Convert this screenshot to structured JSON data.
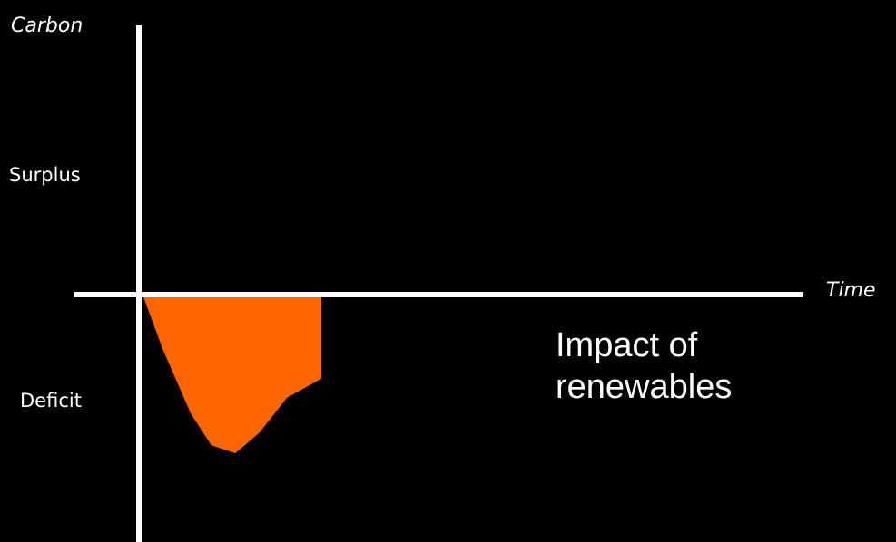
{
  "chart_data": {
    "type": "area",
    "title": "",
    "xlabel": "Time",
    "ylabel": "Carbon",
    "region_labels": {
      "positive": "Surplus",
      "negative": "Deficit"
    },
    "annotation": [
      "Impact of",
      "renewables"
    ],
    "xlim": [
      0,
      100
    ],
    "ylim": [
      -100,
      100
    ],
    "grid": false,
    "series": [
      {
        "x": [
          0,
          3,
          7,
          10,
          13.5,
          17,
          21,
          26,
          26
        ],
        "values": [
          0,
          -35,
          -75,
          -95,
          -100,
          -87,
          -65,
          -53,
          0
        ]
      }
    ]
  },
  "colors": {
    "background": "#000000",
    "axes": "#ffffff",
    "fill": "#ff6600",
    "text": "#ffffff"
  }
}
